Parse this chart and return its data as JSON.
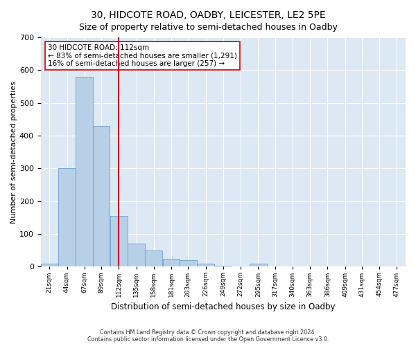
{
  "title1": "30, HIDCOTE ROAD, OADBY, LEICESTER, LE2 5PE",
  "title2": "Size of property relative to semi-detached houses in Oadby",
  "xlabel": "Distribution of semi-detached houses by size in Oadby",
  "ylabel": "Number of semi-detached properties",
  "annotation_line1": "30 HIDCOTE ROAD: 112sqm",
  "annotation_line2": "← 83% of semi-detached houses are smaller (1,291)",
  "annotation_line3": "16% of semi-detached houses are larger (257) →",
  "footer1": "Contains HM Land Registry data © Crown copyright and database right 2024.",
  "footer2": "Contains public sector information licensed under the Open Government Licence v3.0.",
  "bin_labels": [
    "21sqm",
    "44sqm",
    "67sqm",
    "89sqm",
    "112sqm",
    "135sqm",
    "158sqm",
    "181sqm",
    "203sqm",
    "226sqm",
    "249sqm",
    "272sqm",
    "295sqm",
    "317sqm",
    "340sqm",
    "363sqm",
    "386sqm",
    "409sqm",
    "431sqm",
    "454sqm",
    "477sqm"
  ],
  "bins": [
    21,
    44,
    67,
    89,
    112,
    135,
    158,
    181,
    203,
    226,
    249,
    272,
    295,
    317,
    340,
    363,
    386,
    409,
    431,
    454,
    477
  ],
  "counts": [
    10,
    300,
    580,
    430,
    155,
    70,
    50,
    25,
    20,
    10,
    3,
    0,
    10,
    0,
    0,
    0,
    0,
    0,
    0,
    0
  ],
  "property_size": 112,
  "bar_color": "#b8cfe8",
  "bar_edge_color": "#6a9fd0",
  "vline_color": "#cc0000",
  "bg_color": "#dde8f5",
  "annotation_box_color": "#ffffff",
  "annotation_box_edge": "#cc0000",
  "ylim": [
    0,
    700
  ],
  "yticks": [
    0,
    100,
    200,
    300,
    400,
    500,
    600,
    700
  ],
  "title_fontsize": 10,
  "subtitle_fontsize": 9
}
